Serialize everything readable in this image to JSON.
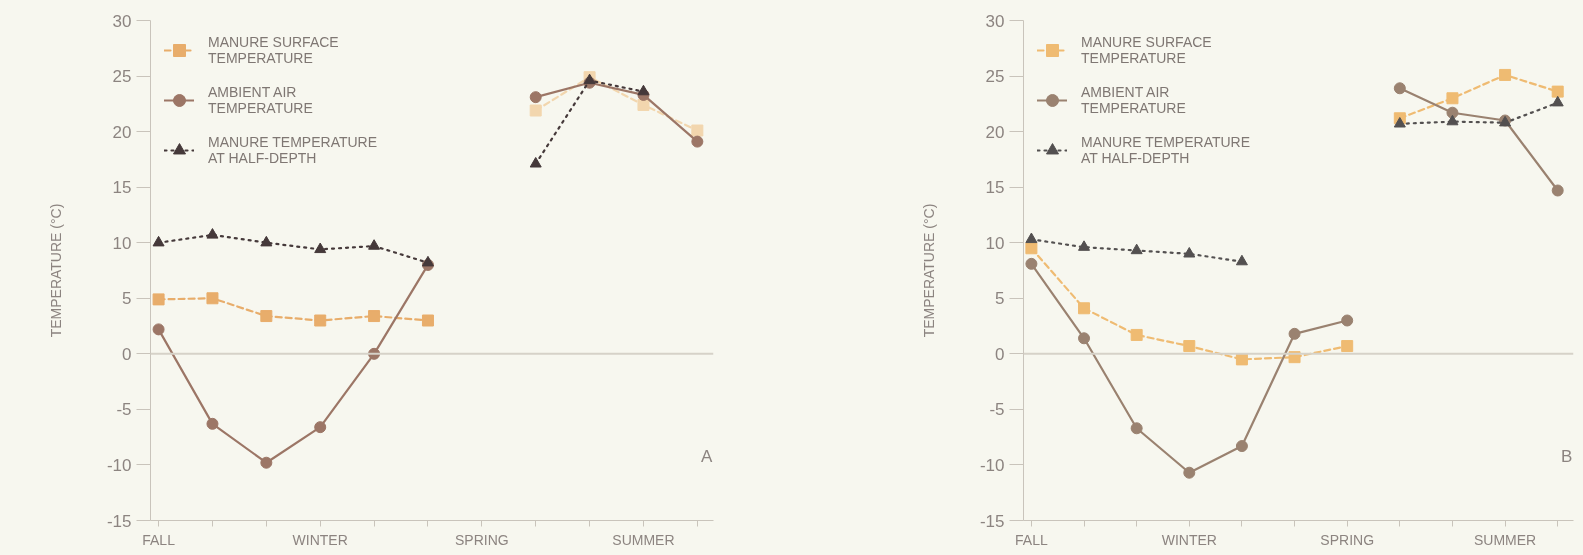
{
  "chart_data": [
    {
      "type": "line",
      "ylabel": "TEMPERATURE (°C)",
      "categories": [
        "FALL",
        null,
        null,
        "WINTER",
        null,
        null,
        "SPRING",
        null,
        null,
        "SUMMER",
        null
      ],
      "series": [
        {
          "name": "MANURE SURFACE TEMPERATURE",
          "color": "#e8ad6b",
          "marker": "square",
          "line_style": "dashed",
          "values": [
            4.9,
            5.0,
            3.4,
            3.0,
            3.4,
            3.0,
            null,
            null,
            null,
            null,
            null
          ]
        },
        {
          "color": "#f2d6ae",
          "marker": "square",
          "line_style": "dashed",
          "values": [
            null,
            null,
            null,
            null,
            null,
            null,
            null,
            21.9,
            24.9,
            22.4,
            20.1
          ]
        },
        {
          "name": "AMBIENT AIR TEMPERATURE",
          "color": "#9c7666",
          "marker": "circle",
          "line_style": "solid",
          "values": [
            2.2,
            -6.3,
            -9.8,
            -6.6,
            0,
            8.0,
            null,
            23.1,
            24.4,
            23.3,
            19.1
          ]
        },
        {
          "name": "MANURE TEMPERATURE AT HALF-DEPTH",
          "color": "#45393a",
          "marker": "triangle",
          "line_style": "dotted",
          "values": [
            10.0,
            10.7,
            10.0,
            9.4,
            9.7,
            8.2,
            null,
            17.1,
            24.6,
            23.6,
            null
          ]
        }
      ],
      "ylim": [
        -15,
        30
      ],
      "yticks": [
        -15,
        -10,
        -5,
        0,
        5,
        10,
        15,
        20,
        25,
        30
      ],
      "grid": false,
      "legend": "top left",
      "ref_lines": [
        {
          "axis": "y",
          "value": 0,
          "color": "#d6d2c8"
        }
      ],
      "annotations": [
        "A"
      ]
    },
    {
      "type": "line",
      "ylabel": "TEMPERATURE (°C)",
      "categories": [
        "FALL",
        null,
        null,
        "WINTER",
        null,
        null,
        "SPRING",
        null,
        null,
        "SUMMER",
        null
      ],
      "series": [
        {
          "name": "MANURE SURFACE TEMPERATURE",
          "color": "#efbb72",
          "marker": "square",
          "line_style": "dashed",
          "values": [
            9.5,
            4.1,
            1.7,
            0.7,
            -0.5,
            -0.3,
            0.7,
            null,
            null,
            null,
            null
          ]
        },
        {
          "color": "#efbb72",
          "marker": "square",
          "line_style": "dashed",
          "values": [
            null,
            null,
            null,
            null,
            null,
            null,
            null,
            21.2,
            23.0,
            25.1,
            23.6
          ]
        },
        {
          "name": "AMBIENT AIR TEMPERATURE",
          "color": "#9a8270",
          "marker": "circle",
          "line_style": "solid",
          "values": [
            8.1,
            1.4,
            -6.7,
            -10.7,
            -8.3,
            1.8,
            3.0,
            null,
            null,
            null,
            null
          ]
        },
        {
          "color": "#9a8270",
          "marker": "circle",
          "line_style": "solid",
          "values": [
            null,
            null,
            null,
            null,
            null,
            null,
            null,
            23.9,
            21.7,
            21.0,
            14.7
          ]
        },
        {
          "name": "MANURE TEMPERATURE AT HALF-DEPTH",
          "color": "#535050",
          "marker": "triangle",
          "line_style": "dotted",
          "values": [
            10.3,
            9.6,
            9.3,
            9.0,
            8.3,
            null,
            null,
            20.7,
            20.9,
            20.8,
            22.6
          ]
        }
      ],
      "ylim": [
        -15,
        30
      ],
      "yticks": [
        -15,
        -10,
        -5,
        0,
        5,
        10,
        15,
        20,
        25,
        30
      ],
      "grid": false,
      "legend": "top left",
      "ref_lines": [
        {
          "axis": "y",
          "value": 0,
          "color": "#d6d2c8"
        }
      ],
      "annotations": [
        "B"
      ]
    }
  ]
}
